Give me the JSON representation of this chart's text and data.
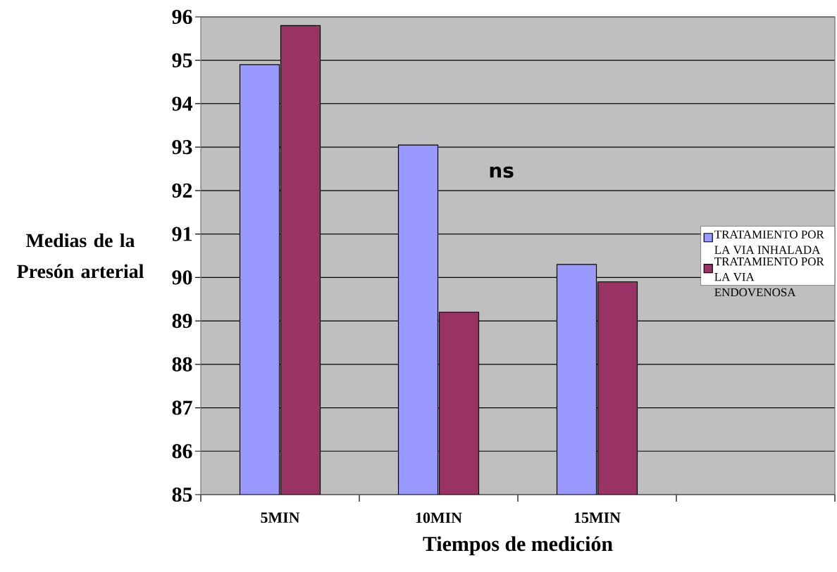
{
  "chart_data": {
    "type": "bar",
    "xlabel": "Tiempos de medición",
    "ylabel": "Medias de la Presón arterial",
    "categories": [
      "5MIN",
      "10MIN",
      "15MIN",
      null
    ],
    "series": [
      {
        "name": "TRATAMIENTO POR LA VIA INHALADA",
        "color": "#9999ff",
        "values": [
          94.9,
          93.05,
          90.3,
          null
        ]
      },
      {
        "name": "TRATAMIENTO POR LA VIA ENDOVENOSA",
        "color": "#993366",
        "values": [
          95.8,
          89.2,
          89.9,
          null
        ]
      }
    ],
    "ylim": [
      85,
      96
    ],
    "yticks": [
      85,
      86,
      87,
      88,
      89,
      90,
      91,
      92,
      93,
      94,
      95,
      96
    ],
    "grid": "y",
    "legend": "right",
    "annotations": [
      "ns"
    ]
  }
}
